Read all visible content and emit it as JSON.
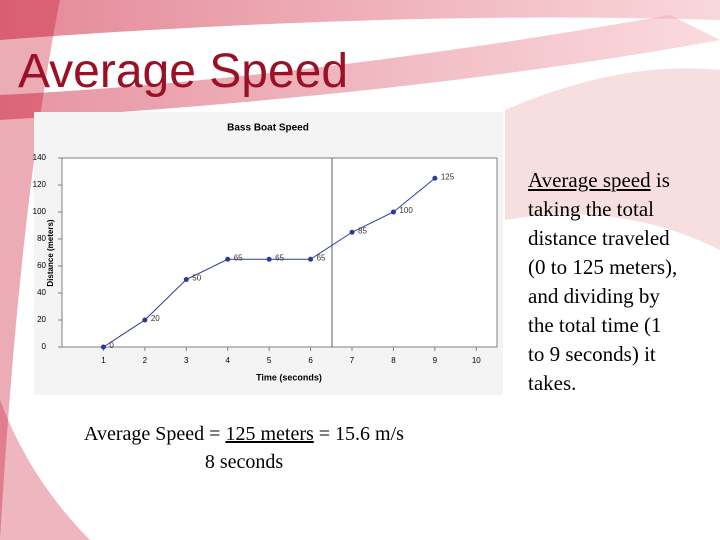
{
  "header": {
    "title": "Average Speed"
  },
  "chart_data": {
    "type": "line",
    "title": "Bass Boat Speed",
    "x_label": "Time (seconds)",
    "y_label": "Distance (meters)",
    "x": [
      1,
      2,
      3,
      4,
      5,
      6,
      7,
      8,
      9
    ],
    "values": [
      0,
      20,
      50,
      65,
      65,
      65,
      85,
      100,
      125
    ],
    "color": "#2b3a9a",
    "xlim": [
      0,
      10.5
    ],
    "ylim": [
      0,
      140
    ],
    "xticks": [
      1,
      2,
      3,
      4,
      5,
      6,
      7,
      8,
      9,
      10
    ],
    "yticks": [
      0,
      20,
      40,
      60,
      80,
      100,
      120,
      140
    ],
    "grid": false
  },
  "formula": {
    "lead": "Average Speed = ",
    "numerator": "125 meters",
    "result": " = 15.6 m/s",
    "denominator": "8 seconds"
  },
  "explanation": {
    "term": "Average speed",
    "text": " is taking the total distance traveled (0 to 125 meters), and dividing by the total time (1 to 9 seconds) it takes."
  }
}
